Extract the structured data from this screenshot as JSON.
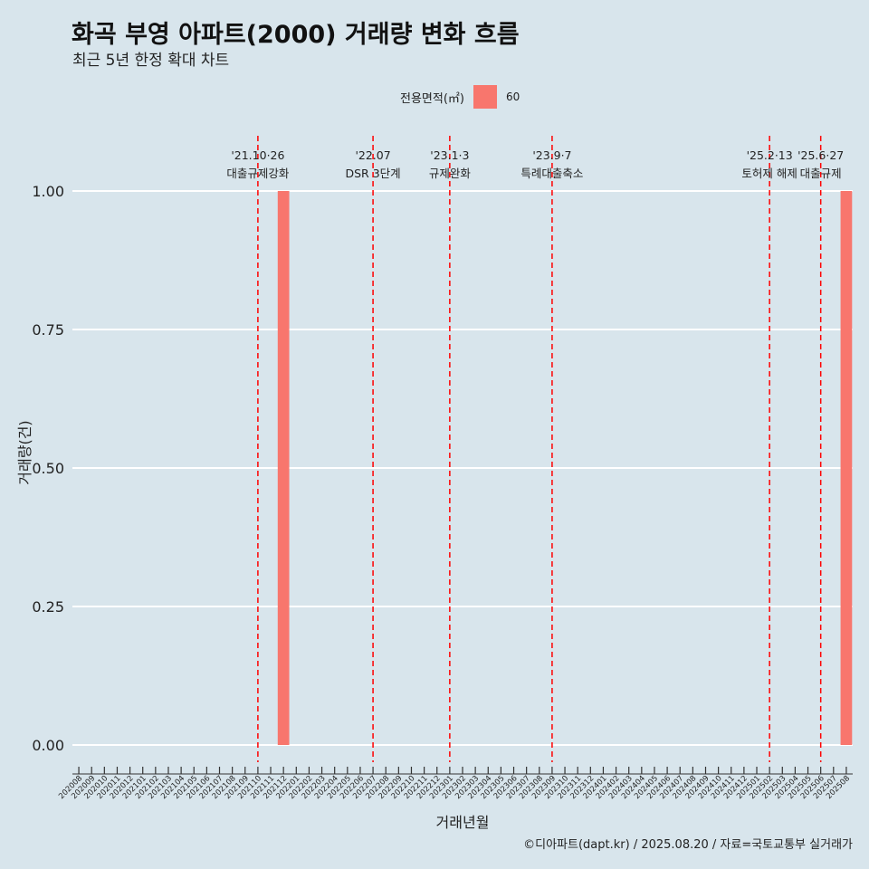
{
  "title": "화곡 부영 아파트(2000) 거래량 변화 흐름",
  "subtitle": "최근 5년 한정 확대 차트",
  "legend": {
    "title": "전용면적(㎡)",
    "label": "60",
    "color": "#f8766d"
  },
  "caption": "©디아파트(dapt.kr) / 2025.08.20 / 자료=국토교통부 실거래가",
  "chart_data": {
    "type": "bar",
    "xlabel": "거래년월",
    "ylabel": "거래량(건)",
    "ylim": [
      0,
      1
    ],
    "yticks": [
      0,
      0.25,
      0.5,
      0.75,
      1
    ],
    "ytick_labels": [
      "0.00",
      "0.25",
      "0.50",
      "0.75",
      "1.00"
    ],
    "categories": [
      "202008",
      "202009",
      "202010",
      "202011",
      "202012",
      "202101",
      "202102",
      "202103",
      "202104",
      "202105",
      "202106",
      "202107",
      "202108",
      "202109",
      "202110",
      "202111",
      "202112",
      "202201",
      "202202",
      "202203",
      "202204",
      "202205",
      "202206",
      "202207",
      "202208",
      "202209",
      "202210",
      "202211",
      "202212",
      "202301",
      "202302",
      "202303",
      "202304",
      "202305",
      "202306",
      "202307",
      "202308",
      "202309",
      "202310",
      "202311",
      "202312",
      "202401",
      "202402",
      "202403",
      "202404",
      "202405",
      "202406",
      "202407",
      "202408",
      "202409",
      "202410",
      "202411",
      "202412",
      "202501",
      "202502",
      "202503",
      "202504",
      "202505",
      "202506",
      "202507",
      "202508"
    ],
    "series": [
      {
        "name": "60",
        "color": "#f8766d",
        "values": [
          0,
          0,
          0,
          0,
          0,
          0,
          0,
          0,
          0,
          0,
          0,
          0,
          0,
          0,
          0,
          0,
          1,
          0,
          0,
          0,
          0,
          0,
          0,
          0,
          0,
          0,
          0,
          0,
          0,
          0,
          0,
          0,
          0,
          0,
          0,
          0,
          0,
          0,
          0,
          0,
          0,
          0,
          0,
          0,
          0,
          0,
          0,
          0,
          0,
          0,
          0,
          0,
          0,
          0,
          0,
          0,
          0,
          0,
          0,
          0,
          1
        ]
      }
    ],
    "annotations": [
      {
        "date_label": "'21.10·26",
        "text": "대출규제강화",
        "category": "202110"
      },
      {
        "date_label": "'22.07",
        "text": "DSR 3단계",
        "category": "202207"
      },
      {
        "date_label": "'23.1·3",
        "text": "규제완화",
        "category": "202301"
      },
      {
        "date_label": "'23.9·7",
        "text": "특례대출축소",
        "category": "202309"
      },
      {
        "date_label": "'25.2·13",
        "text": "토허제 해제",
        "category": "202502"
      },
      {
        "date_label": "'25.6·27",
        "text": "대출규제",
        "category": "202506"
      }
    ],
    "reference_line_color": "#ff0000"
  }
}
